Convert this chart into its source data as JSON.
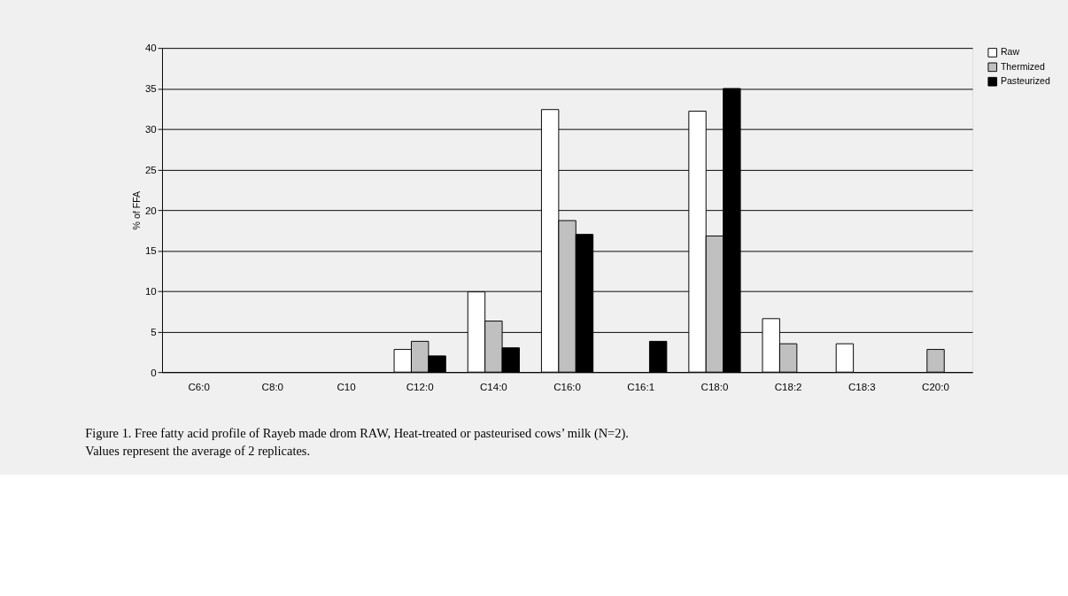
{
  "chart_data": {
    "type": "bar",
    "ylabel": "% of FFA",
    "categories": [
      "C6:0",
      "C8:0",
      "C10",
      "C12:0",
      "C14:0",
      "C16:0",
      "C16:1",
      "C18:0",
      "C18:2",
      "C18:3",
      "C20:0"
    ],
    "series": [
      {
        "name": "Raw",
        "color": "#ffffff",
        "values": [
          null,
          null,
          null,
          2.8,
          9.9,
          32.4,
          null,
          32.2,
          6.6,
          3.5,
          null
        ]
      },
      {
        "name": "Thermized",
        "color": "#c0c0c0",
        "values": [
          null,
          null,
          null,
          3.8,
          6.3,
          18.7,
          null,
          16.8,
          3.5,
          null,
          2.8
        ]
      },
      {
        "name": "Pasteurized",
        "color": "#000000",
        "values": [
          null,
          null,
          null,
          2.0,
          3.0,
          17.0,
          3.8,
          35.0,
          null,
          null,
          null
        ]
      }
    ],
    "ylim": [
      0,
      40
    ],
    "yticks": [
      0,
      5,
      10,
      15,
      20,
      25,
      30,
      35,
      40
    ],
    "grid": "y",
    "legend": "right",
    "annotations": [
      "Figure 1. Free fatty acid profile of Rayeb made drom RAW, Heat-treated or pasteurised cows’ milk (N=2).",
      "Values represent the average of 2 replicates."
    ]
  }
}
